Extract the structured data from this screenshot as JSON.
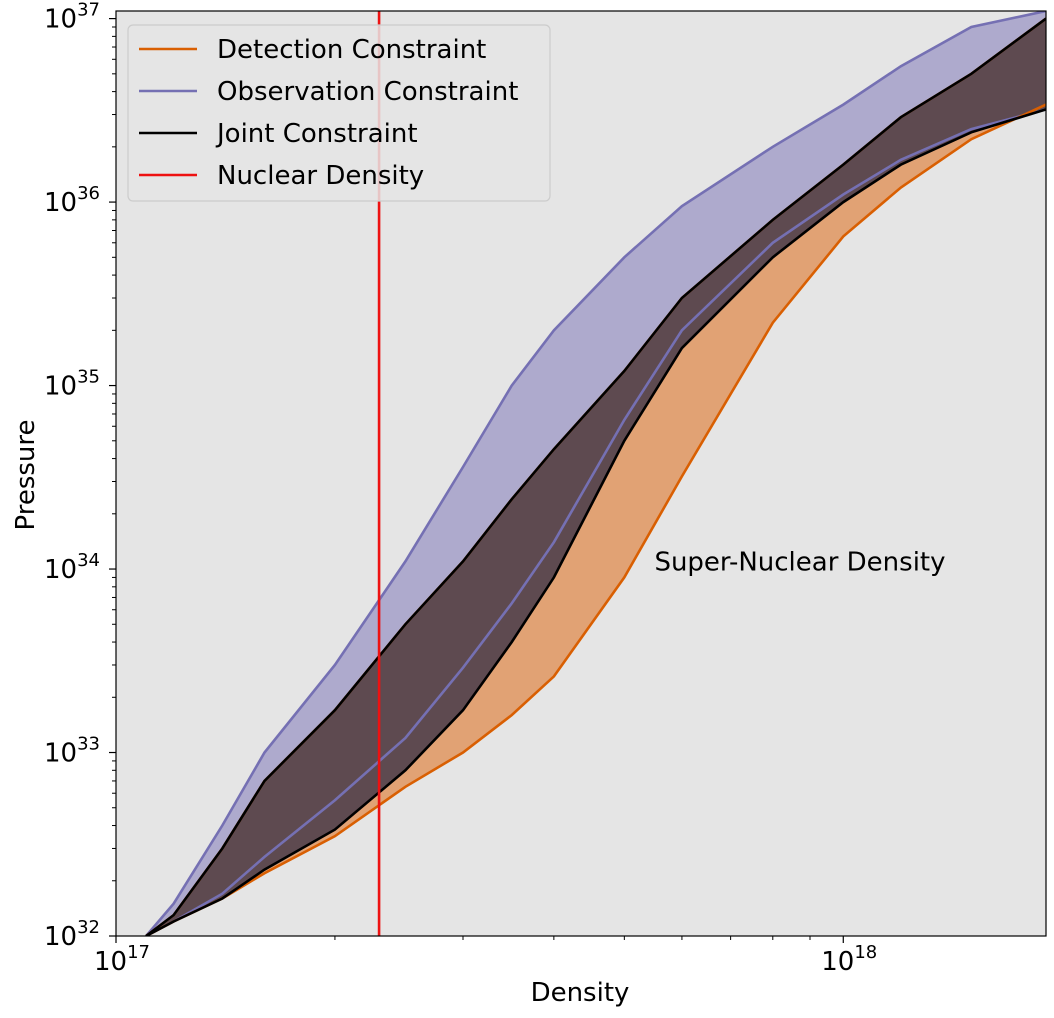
{
  "chart_data": {
    "type": "area",
    "xlabel": "Density",
    "ylabel": "Pressure",
    "xscale": "log",
    "yscale": "log",
    "xlim": [
      1e+17,
      1.9e+18
    ],
    "ylim": [
      1e+32,
      1.1e+37
    ],
    "grid": false,
    "background_color": "#e5e5e5",
    "x_ticks": [
      {
        "base": "10",
        "exp": "17",
        "value": 1e+17
      },
      {
        "base": "10",
        "exp": "18",
        "value": 1e+18
      }
    ],
    "y_ticks": [
      {
        "base": "10",
        "exp": "32",
        "value": 1e+32
      },
      {
        "base": "10",
        "exp": "33",
        "value": 1e+33
      },
      {
        "base": "10",
        "exp": "34",
        "value": 1e+34
      },
      {
        "base": "10",
        "exp": "35",
        "value": 1e+35
      },
      {
        "base": "10",
        "exp": "36",
        "value": 1e+36
      },
      {
        "base": "10",
        "exp": "37",
        "value": 1e+37
      }
    ],
    "legend_position": "upper-left",
    "legend": [
      {
        "label": "Detection Constraint",
        "color": "#d95f02"
      },
      {
        "label": "Observation Constraint",
        "color": "#7570b3"
      },
      {
        "label": "Joint Constraint",
        "color": "#000000"
      },
      {
        "label": "Nuclear Density",
        "color": "#ee1111"
      }
    ],
    "series": [
      {
        "name": "Detection Constraint",
        "color": "#d95f02",
        "fill_color": "#e09660",
        "upper": {
          "x": [
            1.1e+17,
            1.2e+17,
            1.4e+17,
            1.6e+17,
            2e+17,
            2.5e+17,
            3e+17,
            3.5e+17,
            4e+17,
            5e+17,
            6e+17,
            8e+17,
            1e+18,
            1.2e+18,
            1.5e+18,
            1.9e+18
          ],
          "y": [
            1e+32,
            1.3e+32,
            3e+32,
            7e+32,
            1.7e+33,
            5e+33,
            1.1e+34,
            2.4e+34,
            4.5e+34,
            1.2e+35,
            3e+35,
            8e+35,
            1.6e+36,
            2.9e+36,
            5e+36,
            1e+37
          ]
        },
        "lower": {
          "x": [
            1.1e+17,
            1.2e+17,
            1.4e+17,
            1.6e+17,
            2e+17,
            2.5e+17,
            3e+17,
            3.5e+17,
            4e+17,
            5e+17,
            6e+17,
            8e+17,
            1e+18,
            1.2e+18,
            1.5e+18,
            1.9e+18
          ],
          "y": [
            1e+32,
            1.2e+32,
            1.6e+32,
            2.2e+32,
            3.5e+32,
            6.5e+32,
            1e+33,
            1.6e+33,
            2.6e+33,
            9e+33,
            3.2e+34,
            2.2e+35,
            6.5e+35,
            1.2e+36,
            2.2e+36,
            3.4e+36
          ]
        }
      },
      {
        "name": "Observation Constraint",
        "color": "#7570b3",
        "fill_color": "#aeaacd",
        "upper": {
          "x": [
            1.1e+17,
            1.2e+17,
            1.4e+17,
            1.6e+17,
            2e+17,
            2.5e+17,
            3e+17,
            3.5e+17,
            4e+17,
            5e+17,
            6e+17,
            8e+17,
            1e+18,
            1.2e+18,
            1.5e+18,
            1.9e+18
          ],
          "y": [
            1e+32,
            1.5e+32,
            4e+32,
            1e+33,
            3e+33,
            1.1e+34,
            3.6e+34,
            1e+35,
            2e+35,
            5e+35,
            9.5e+35,
            2e+36,
            3.4e+36,
            5.5e+36,
            9e+36,
            1.1e+37
          ]
        },
        "lower": {
          "x": [
            1.1e+17,
            1.2e+17,
            1.4e+17,
            1.6e+17,
            2e+17,
            2.5e+17,
            3e+17,
            3.5e+17,
            4e+17,
            5e+17,
            6e+17,
            8e+17,
            1e+18,
            1.2e+18,
            1.5e+18,
            1.9e+18
          ],
          "y": [
            1e+32,
            1.2e+32,
            1.7e+32,
            2.7e+32,
            5.5e+32,
            1.2e+33,
            2.9e+33,
            6.5e+33,
            1.4e+34,
            6.5e+34,
            2e+35,
            6e+35,
            1.1e+36,
            1.7e+36,
            2.5e+36,
            3.2e+36
          ]
        }
      },
      {
        "name": "Joint Constraint",
        "color": "#000000",
        "fill_color": "#5e4a50",
        "upper": {
          "x": [
            1.1e+17,
            1.2e+17,
            1.4e+17,
            1.6e+17,
            2e+17,
            2.5e+17,
            3e+17,
            3.5e+17,
            4e+17,
            5e+17,
            6e+17,
            8e+17,
            1e+18,
            1.2e+18,
            1.5e+18,
            1.9e+18
          ],
          "y": [
            1e+32,
            1.3e+32,
            3e+32,
            7e+32,
            1.7e+33,
            5e+33,
            1.1e+34,
            2.4e+34,
            4.5e+34,
            1.2e+35,
            3e+35,
            8e+35,
            1.6e+36,
            2.9e+36,
            5e+36,
            1e+37
          ]
        },
        "lower": {
          "x": [
            1.1e+17,
            1.2e+17,
            1.4e+17,
            1.6e+17,
            2e+17,
            2.5e+17,
            3e+17,
            3.5e+17,
            4e+17,
            5e+17,
            6e+17,
            8e+17,
            1e+18,
            1.2e+18,
            1.5e+18,
            1.9e+18
          ],
          "y": [
            1e+32,
            1.2e+32,
            1.6e+32,
            2.3e+32,
            3.8e+32,
            8e+32,
            1.7e+33,
            4e+33,
            9e+33,
            5e+34,
            1.6e+35,
            5e+35,
            1e+36,
            1.6e+36,
            2.4e+36,
            3.2e+36
          ]
        }
      }
    ],
    "vline": {
      "name": "Nuclear Density",
      "x": 2.3e+17,
      "color": "#ee1111"
    },
    "annotations": [
      {
        "text": "Super-Nuclear Density",
        "x": 5.5e+17,
        "y": 1.1e+34
      }
    ]
  }
}
